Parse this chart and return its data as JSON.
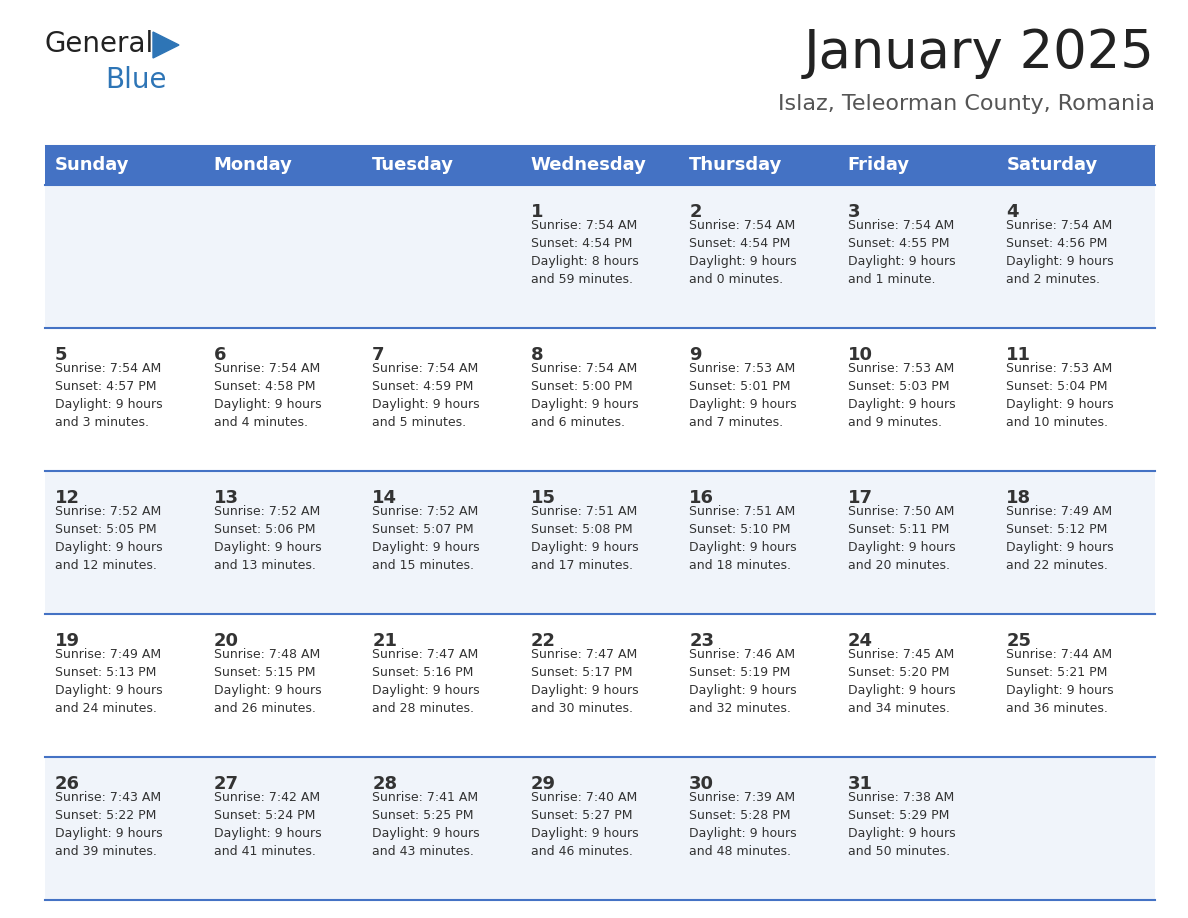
{
  "title": "January 2025",
  "subtitle": "Islaz, Teleorman County, Romania",
  "days_of_week": [
    "Sunday",
    "Monday",
    "Tuesday",
    "Wednesday",
    "Thursday",
    "Friday",
    "Saturday"
  ],
  "header_bg": "#4472C4",
  "header_text_color": "#FFFFFF",
  "row_bg_even": "#FFFFFF",
  "row_bg_odd": "#F0F4FA",
  "cell_border_color": "#4472C4",
  "day_number_color": "#333333",
  "text_color": "#333333",
  "title_color": "#222222",
  "subtitle_color": "#555555",
  "logo_general_color": "#222222",
  "logo_blue_color": "#2E75B6",
  "logo_triangle_color": "#2E75B6",
  "calendar_data": [
    [
      null,
      null,
      null,
      {
        "day": "1",
        "sunrise": "7:54 AM",
        "sunset": "4:54 PM",
        "daylight_line1": "Daylight: 8 hours",
        "daylight_line2": "and 59 minutes."
      },
      {
        "day": "2",
        "sunrise": "7:54 AM",
        "sunset": "4:54 PM",
        "daylight_line1": "Daylight: 9 hours",
        "daylight_line2": "and 0 minutes."
      },
      {
        "day": "3",
        "sunrise": "7:54 AM",
        "sunset": "4:55 PM",
        "daylight_line1": "Daylight: 9 hours",
        "daylight_line2": "and 1 minute."
      },
      {
        "day": "4",
        "sunrise": "7:54 AM",
        "sunset": "4:56 PM",
        "daylight_line1": "Daylight: 9 hours",
        "daylight_line2": "and 2 minutes."
      }
    ],
    [
      {
        "day": "5",
        "sunrise": "7:54 AM",
        "sunset": "4:57 PM",
        "daylight_line1": "Daylight: 9 hours",
        "daylight_line2": "and 3 minutes."
      },
      {
        "day": "6",
        "sunrise": "7:54 AM",
        "sunset": "4:58 PM",
        "daylight_line1": "Daylight: 9 hours",
        "daylight_line2": "and 4 minutes."
      },
      {
        "day": "7",
        "sunrise": "7:54 AM",
        "sunset": "4:59 PM",
        "daylight_line1": "Daylight: 9 hours",
        "daylight_line2": "and 5 minutes."
      },
      {
        "day": "8",
        "sunrise": "7:54 AM",
        "sunset": "5:00 PM",
        "daylight_line1": "Daylight: 9 hours",
        "daylight_line2": "and 6 minutes."
      },
      {
        "day": "9",
        "sunrise": "7:53 AM",
        "sunset": "5:01 PM",
        "daylight_line1": "Daylight: 9 hours",
        "daylight_line2": "and 7 minutes."
      },
      {
        "day": "10",
        "sunrise": "7:53 AM",
        "sunset": "5:03 PM",
        "daylight_line1": "Daylight: 9 hours",
        "daylight_line2": "and 9 minutes."
      },
      {
        "day": "11",
        "sunrise": "7:53 AM",
        "sunset": "5:04 PM",
        "daylight_line1": "Daylight: 9 hours",
        "daylight_line2": "and 10 minutes."
      }
    ],
    [
      {
        "day": "12",
        "sunrise": "7:52 AM",
        "sunset": "5:05 PM",
        "daylight_line1": "Daylight: 9 hours",
        "daylight_line2": "and 12 minutes."
      },
      {
        "day": "13",
        "sunrise": "7:52 AM",
        "sunset": "5:06 PM",
        "daylight_line1": "Daylight: 9 hours",
        "daylight_line2": "and 13 minutes."
      },
      {
        "day": "14",
        "sunrise": "7:52 AM",
        "sunset": "5:07 PM",
        "daylight_line1": "Daylight: 9 hours",
        "daylight_line2": "and 15 minutes."
      },
      {
        "day": "15",
        "sunrise": "7:51 AM",
        "sunset": "5:08 PM",
        "daylight_line1": "Daylight: 9 hours",
        "daylight_line2": "and 17 minutes."
      },
      {
        "day": "16",
        "sunrise": "7:51 AM",
        "sunset": "5:10 PM",
        "daylight_line1": "Daylight: 9 hours",
        "daylight_line2": "and 18 minutes."
      },
      {
        "day": "17",
        "sunrise": "7:50 AM",
        "sunset": "5:11 PM",
        "daylight_line1": "Daylight: 9 hours",
        "daylight_line2": "and 20 minutes."
      },
      {
        "day": "18",
        "sunrise": "7:49 AM",
        "sunset": "5:12 PM",
        "daylight_line1": "Daylight: 9 hours",
        "daylight_line2": "and 22 minutes."
      }
    ],
    [
      {
        "day": "19",
        "sunrise": "7:49 AM",
        "sunset": "5:13 PM",
        "daylight_line1": "Daylight: 9 hours",
        "daylight_line2": "and 24 minutes."
      },
      {
        "day": "20",
        "sunrise": "7:48 AM",
        "sunset": "5:15 PM",
        "daylight_line1": "Daylight: 9 hours",
        "daylight_line2": "and 26 minutes."
      },
      {
        "day": "21",
        "sunrise": "7:47 AM",
        "sunset": "5:16 PM",
        "daylight_line1": "Daylight: 9 hours",
        "daylight_line2": "and 28 minutes."
      },
      {
        "day": "22",
        "sunrise": "7:47 AM",
        "sunset": "5:17 PM",
        "daylight_line1": "Daylight: 9 hours",
        "daylight_line2": "and 30 minutes."
      },
      {
        "day": "23",
        "sunrise": "7:46 AM",
        "sunset": "5:19 PM",
        "daylight_line1": "Daylight: 9 hours",
        "daylight_line2": "and 32 minutes."
      },
      {
        "day": "24",
        "sunrise": "7:45 AM",
        "sunset": "5:20 PM",
        "daylight_line1": "Daylight: 9 hours",
        "daylight_line2": "and 34 minutes."
      },
      {
        "day": "25",
        "sunrise": "7:44 AM",
        "sunset": "5:21 PM",
        "daylight_line1": "Daylight: 9 hours",
        "daylight_line2": "and 36 minutes."
      }
    ],
    [
      {
        "day": "26",
        "sunrise": "7:43 AM",
        "sunset": "5:22 PM",
        "daylight_line1": "Daylight: 9 hours",
        "daylight_line2": "and 39 minutes."
      },
      {
        "day": "27",
        "sunrise": "7:42 AM",
        "sunset": "5:24 PM",
        "daylight_line1": "Daylight: 9 hours",
        "daylight_line2": "and 41 minutes."
      },
      {
        "day": "28",
        "sunrise": "7:41 AM",
        "sunset": "5:25 PM",
        "daylight_line1": "Daylight: 9 hours",
        "daylight_line2": "and 43 minutes."
      },
      {
        "day": "29",
        "sunrise": "7:40 AM",
        "sunset": "5:27 PM",
        "daylight_line1": "Daylight: 9 hours",
        "daylight_line2": "and 46 minutes."
      },
      {
        "day": "30",
        "sunrise": "7:39 AM",
        "sunset": "5:28 PM",
        "daylight_line1": "Daylight: 9 hours",
        "daylight_line2": "and 48 minutes."
      },
      {
        "day": "31",
        "sunrise": "7:38 AM",
        "sunset": "5:29 PM",
        "daylight_line1": "Daylight: 9 hours",
        "daylight_line2": "and 50 minutes."
      },
      null
    ]
  ]
}
